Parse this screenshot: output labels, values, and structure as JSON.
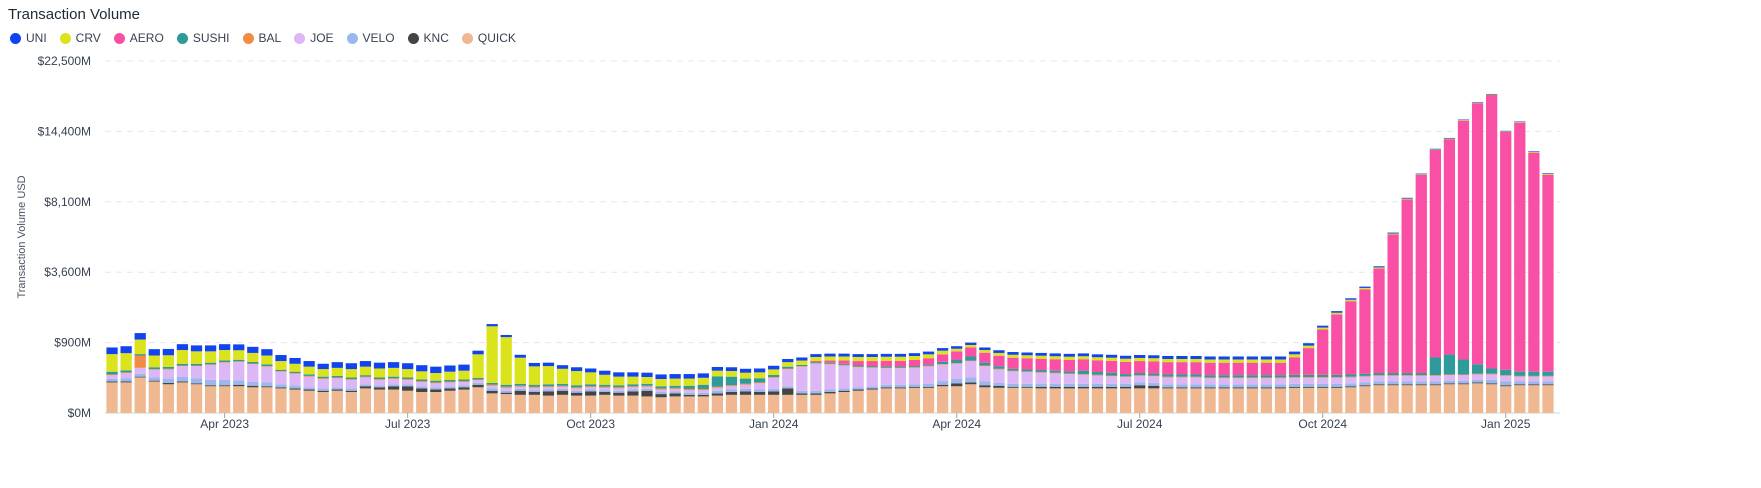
{
  "chart_data": {
    "type": "bar",
    "stacked": true,
    "title": "Transaction Volume",
    "ylabel": "Transaction Volume USD",
    "xlabel": "",
    "y_scale": "sqrt",
    "ylim": [
      0,
      22500
    ],
    "y_unit": "USD millions",
    "y_ticks": [
      0,
      900,
      3600,
      8100,
      14400,
      22500
    ],
    "y_tick_labels": [
      "$0M",
      "$900M",
      "$3,600M",
      "$8,100M",
      "$14,400M",
      "$22,500M"
    ],
    "x_tick_labels": [
      "Apr 2023",
      "Jul 2023",
      "Oct 2023",
      "Jan 2024",
      "Apr 2024",
      "Jul 2024",
      "Oct 2024",
      "Jan 2025"
    ],
    "x_tick_positions": [
      8.5,
      21.5,
      34.5,
      47.5,
      60.5,
      73.5,
      86.5,
      99.5
    ],
    "grid": "horizontal-dashed",
    "legend_position": "top-left",
    "bar_count": 103,
    "series": [
      {
        "name": "QUICK",
        "color": "#f0b890",
        "values": [
          170,
          170,
          230,
          180,
          150,
          170,
          150,
          130,
          130,
          130,
          120,
          120,
          110,
          100,
          90,
          80,
          90,
          80,
          110,
          100,
          100,
          90,
          80,
          80,
          90,
          100,
          120,
          70,
          65,
          60,
          60,
          55,
          60,
          55,
          55,
          60,
          55,
          55,
          50,
          45,
          50,
          50,
          50,
          55,
          60,
          60,
          60,
          60,
          60,
          60,
          60,
          70,
          80,
          90,
          100,
          110,
          110,
          115,
          115,
          130,
          130,
          150,
          120,
          115,
          115,
          115,
          110,
          110,
          110,
          110,
          110,
          110,
          110,
          110,
          110,
          110,
          110,
          110,
          110,
          110,
          110,
          110,
          110,
          110,
          115,
          115,
          115,
          115,
          120,
          130,
          140,
          140,
          140,
          140,
          140,
          150,
          150,
          160,
          150,
          130,
          140,
          140,
          140
        ]
      },
      {
        "name": "KNC",
        "color": "#444444",
        "values": [
          10,
          10,
          10,
          10,
          15,
          10,
          10,
          10,
          10,
          15,
          15,
          10,
          10,
          10,
          10,
          10,
          10,
          10,
          20,
          20,
          30,
          40,
          30,
          20,
          20,
          20,
          25,
          20,
          10,
          30,
          20,
          30,
          30,
          20,
          30,
          20,
          20,
          30,
          40,
          20,
          20,
          10,
          10,
          15,
          20,
          25,
          20,
          25,
          50,
          10,
          10,
          10,
          10,
          10,
          10,
          10,
          10,
          10,
          10,
          15,
          30,
          20,
          20,
          20,
          10,
          10,
          15,
          15,
          15,
          15,
          15,
          15,
          15,
          30,
          25,
          10,
          10,
          10,
          10,
          10,
          10,
          10,
          10,
          10,
          10,
          10,
          10,
          10,
          10,
          10,
          10,
          10,
          10,
          10,
          10,
          10,
          10,
          10,
          10,
          10,
          10,
          10,
          10
        ]
      },
      {
        "name": "VELO",
        "color": "#9ab8ee",
        "values": [
          30,
          40,
          40,
          40,
          50,
          60,
          60,
          60,
          60,
          50,
          40,
          40,
          30,
          30,
          20,
          20,
          20,
          20,
          20,
          20,
          20,
          20,
          20,
          20,
          20,
          20,
          20,
          20,
          15,
          15,
          15,
          15,
          15,
          15,
          15,
          15,
          15,
          15,
          15,
          15,
          15,
          15,
          15,
          20,
          20,
          20,
          20,
          20,
          20,
          20,
          20,
          20,
          20,
          20,
          20,
          25,
          25,
          25,
          30,
          40,
          50,
          60,
          40,
          30,
          30,
          30,
          30,
          30,
          30,
          30,
          30,
          30,
          30,
          30,
          30,
          30,
          30,
          30,
          30,
          30,
          30,
          30,
          30,
          30,
          30,
          30,
          30,
          30,
          30,
          30,
          30,
          30,
          30,
          30,
          30,
          30,
          30,
          30,
          40,
          40,
          30,
          30,
          30
        ]
      },
      {
        "name": "JOE",
        "color": "#ddb6f5",
        "values": [
          50,
          70,
          90,
          110,
          130,
          160,
          180,
          220,
          260,
          280,
          260,
          220,
          160,
          140,
          120,
          100,
          100,
          90,
          80,
          60,
          60,
          50,
          45,
          40,
          40,
          35,
          30,
          25,
          25,
          20,
          20,
          20,
          20,
          20,
          20,
          20,
          20,
          20,
          20,
          20,
          20,
          20,
          20,
          25,
          30,
          40,
          60,
          120,
          220,
          300,
          350,
          330,
          300,
          260,
          240,
          220,
          220,
          220,
          240,
          240,
          230,
          260,
          220,
          180,
          160,
          150,
          140,
          130,
          120,
          110,
          100,
          90,
          80,
          80,
          80,
          80,
          80,
          80,
          70,
          70,
          70,
          70,
          70,
          70,
          70,
          70,
          70,
          70,
          70,
          70,
          70,
          70,
          70,
          70,
          70,
          70,
          70,
          70,
          70,
          70,
          60,
          60,
          60
        ]
      },
      {
        "name": "BAL",
        "color": "#f28c45",
        "values": [
          10,
          10,
          230,
          10,
          10,
          10,
          10,
          10,
          10,
          10,
          10,
          10,
          10,
          10,
          10,
          10,
          10,
          10,
          10,
          10,
          10,
          10,
          10,
          10,
          10,
          10,
          10,
          10,
          10,
          10,
          10,
          10,
          10,
          10,
          10,
          10,
          10,
          10,
          10,
          10,
          10,
          10,
          10,
          10,
          10,
          10,
          10,
          10,
          10,
          10,
          10,
          10,
          10,
          10,
          10,
          10,
          10,
          10,
          10,
          10,
          10,
          10,
          10,
          10,
          10,
          10,
          10,
          10,
          10,
          10,
          10,
          10,
          10,
          10,
          10,
          10,
          10,
          10,
          10,
          10,
          10,
          10,
          10,
          10,
          10,
          10,
          10,
          10,
          10,
          10,
          10,
          10,
          10,
          10,
          10,
          10,
          10,
          10,
          10,
          10,
          10,
          10,
          10
        ]
      },
      {
        "name": "SUSHI",
        "color": "#2e9a9a",
        "values": [
          40,
          30,
          30,
          30,
          30,
          30,
          30,
          30,
          30,
          30,
          30,
          30,
          20,
          20,
          20,
          20,
          20,
          20,
          20,
          20,
          20,
          20,
          20,
          20,
          20,
          20,
          20,
          20,
          20,
          20,
          20,
          20,
          20,
          20,
          20,
          20,
          20,
          20,
          20,
          20,
          20,
          30,
          40,
          120,
          100,
          60,
          50,
          30,
          30,
          20,
          20,
          20,
          20,
          20,
          20,
          20,
          20,
          20,
          20,
          40,
          60,
          80,
          50,
          40,
          30,
          30,
          30,
          30,
          30,
          50,
          40,
          40,
          30,
          30,
          30,
          30,
          30,
          30,
          30,
          30,
          30,
          30,
          30,
          30,
          30,
          30,
          30,
          30,
          30,
          30,
          30,
          30,
          30,
          30,
          300,
          350,
          250,
          150,
          80,
          80,
          60,
          60,
          60
        ]
      },
      {
        "name": "AERO",
        "color": "#f94fa5",
        "values": [
          0,
          0,
          0,
          0,
          0,
          0,
          0,
          0,
          0,
          0,
          0,
          0,
          0,
          0,
          0,
          0,
          0,
          0,
          0,
          0,
          0,
          0,
          0,
          0,
          0,
          0,
          0,
          0,
          0,
          0,
          0,
          0,
          0,
          0,
          0,
          0,
          0,
          0,
          0,
          0,
          0,
          0,
          0,
          0,
          0,
          0,
          0,
          0,
          0,
          0,
          20,
          40,
          60,
          80,
          90,
          100,
          100,
          110,
          120,
          150,
          180,
          200,
          200,
          200,
          200,
          200,
          200,
          200,
          200,
          200,
          200,
          200,
          200,
          200,
          200,
          200,
          200,
          200,
          200,
          200,
          200,
          200,
          200,
          200,
          300,
          500,
          1000,
          1500,
          2000,
          2500,
          3500,
          5500,
          8000,
          10000,
          12000,
          13000,
          15000,
          17000,
          18000,
          14000,
          15000,
          12000,
          10000
        ]
      },
      {
        "name": "CRV",
        "color": "#dbe31c",
        "values": [
          320,
          320,
          350,
          220,
          220,
          280,
          250,
          230,
          220,
          200,
          180,
          170,
          150,
          130,
          120,
          110,
          120,
          120,
          130,
          130,
          130,
          120,
          110,
          100,
          110,
          120,
          400,
          1200,
          900,
          400,
          250,
          250,
          200,
          180,
          150,
          120,
          100,
          90,
          80,
          80,
          80,
          80,
          80,
          80,
          80,
          80,
          80,
          80,
          80,
          80,
          80,
          80,
          80,
          80,
          80,
          80,
          80,
          80,
          80,
          80,
          60,
          60,
          60,
          60,
          60,
          60,
          60,
          60,
          60,
          60,
          60,
          60,
          60,
          60,
          60,
          60,
          60,
          60,
          60,
          60,
          60,
          60,
          60,
          60,
          60,
          60,
          60,
          60,
          60,
          60,
          60,
          60,
          60,
          60,
          60,
          60,
          60,
          60,
          60,
          60,
          60,
          60,
          60
        ]
      },
      {
        "name": "UNI",
        "color": "#1144ee",
        "values": [
          150,
          160,
          180,
          140,
          140,
          140,
          140,
          140,
          140,
          140,
          140,
          140,
          120,
          110,
          100,
          90,
          100,
          100,
          100,
          100,
          100,
          100,
          100,
          100,
          100,
          100,
          80,
          70,
          60,
          60,
          60,
          60,
          60,
          60,
          60,
          60,
          60,
          60,
          60,
          60,
          60,
          60,
          60,
          60,
          60,
          60,
          60,
          60,
          60,
          60,
          60,
          60,
          60,
          60,
          60,
          60,
          60,
          60,
          60,
          60,
          60,
          60,
          60,
          60,
          60,
          60,
          60,
          60,
          60,
          60,
          60,
          60,
          60,
          60,
          60,
          60,
          60,
          60,
          60,
          60,
          60,
          60,
          60,
          60,
          60,
          60,
          60,
          60,
          60,
          60,
          60,
          60,
          60,
          60,
          60,
          60,
          60,
          60,
          60,
          60,
          60,
          60,
          60
        ]
      }
    ]
  }
}
